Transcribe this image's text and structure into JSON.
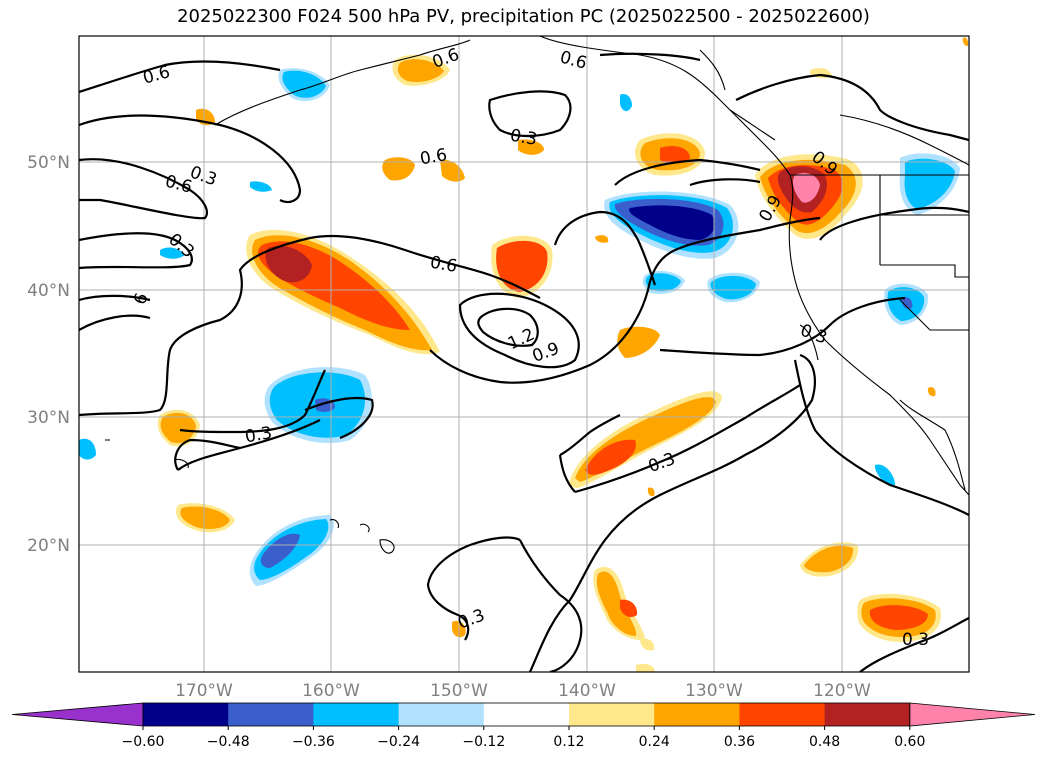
{
  "title": "2025022300 F024 500 hPa PV, precipitation PC (2025022500 - 2025022600)",
  "longitude_labels": [
    "170°W",
    "160°W",
    "150°W",
    "140°W",
    "130°W",
    "120°W"
  ],
  "latitude_labels": [
    "50°N",
    "40°N",
    "30°N",
    "20°N"
  ],
  "colorbar": {
    "ticks": [
      "−0.60",
      "−0.48",
      "−0.36",
      "−0.24",
      "−0.12",
      "0.12",
      "0.24",
      "0.36",
      "0.48",
      "0.60"
    ],
    "colors": [
      "#9932cc",
      "#00008b",
      "#3a5fcd",
      "#00bfff",
      "#b0e2ff",
      "#ffffff",
      "#ffe88c",
      "#ffa500",
      "#ff4500",
      "#b22222",
      "#ff82ab"
    ]
  },
  "contour_labels": [
    "0.6",
    "0.6",
    "0.6",
    "0.3",
    "0.6",
    "0.3",
    "0.6",
    "0.3",
    "6",
    "0.6",
    "0.3",
    "1.2",
    "0.9",
    "0.3",
    "0.3",
    "0.3",
    "0.3",
    "0.9",
    "0.9"
  ]
}
